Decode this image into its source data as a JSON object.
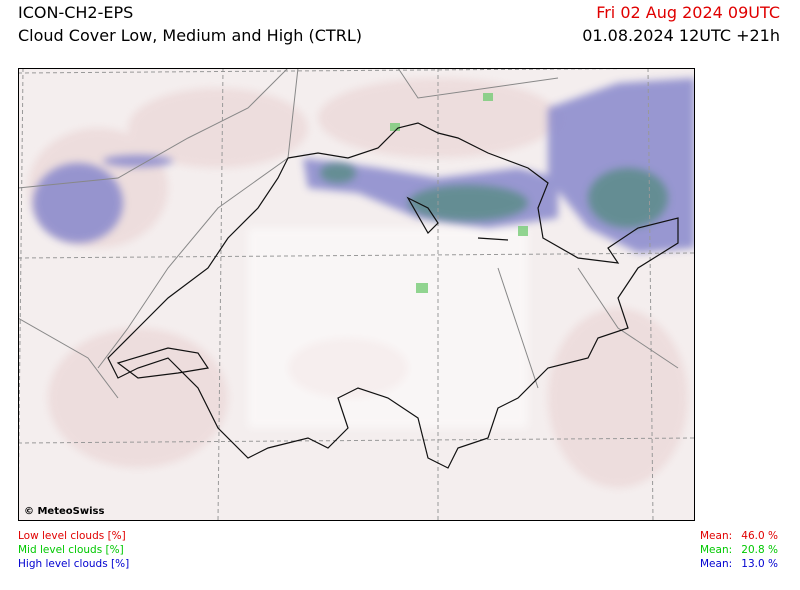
{
  "header": {
    "model": "ICON-CH2-EPS",
    "title": "Cloud Cover Low, Medium and High (CTRL)",
    "valid_time": "Fri 02 Aug 2024 09UTC",
    "run_time": "01.08.2024 12UTC +21h"
  },
  "map": {
    "copyright": "© MeteoSwiss"
  },
  "legend": {
    "items": [
      {
        "label": "Low level clouds [%]",
        "mean_label": "Mean:",
        "mean": "46.0 %",
        "color": "#e00000"
      },
      {
        "label": "Mid level clouds [%]",
        "mean_label": "Mean:",
        "mean": "20.8 %",
        "color": "#00c800"
      },
      {
        "label": "High level clouds [%]",
        "mean_label": "Mean:",
        "mean": "13.0 %",
        "color": "#0000d0"
      }
    ]
  }
}
